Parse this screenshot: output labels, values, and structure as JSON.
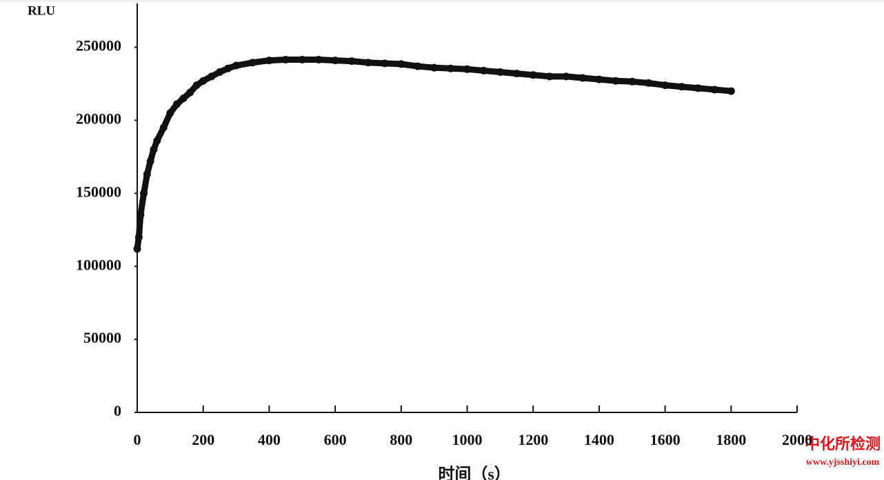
{
  "chart_data": {
    "type": "line",
    "y_label": "RLU",
    "x_label": "时间（s）",
    "x": [
      0,
      5,
      10,
      20,
      30,
      40,
      50,
      60,
      80,
      100,
      120,
      140,
      160,
      180,
      200,
      225,
      250,
      275,
      300,
      350,
      400,
      450,
      500,
      550,
      600,
      650,
      700,
      750,
      800,
      850,
      900,
      950,
      1000,
      1050,
      1100,
      1150,
      1200,
      1250,
      1300,
      1350,
      1400,
      1450,
      1500,
      1550,
      1600,
      1650,
      1700,
      1750,
      1800
    ],
    "values": [
      112000,
      120000,
      135000,
      150000,
      163000,
      172000,
      180000,
      186000,
      195000,
      205000,
      211000,
      215000,
      219000,
      224000,
      227000,
      230000,
      233000,
      235500,
      237500,
      239500,
      241000,
      241500,
      241500,
      241500,
      241000,
      240500,
      239500,
      239000,
      238500,
      237000,
      236000,
      235500,
      235000,
      234000,
      233000,
      232000,
      231000,
      230000,
      230000,
      229000,
      228000,
      227000,
      226500,
      225500,
      224000,
      223000,
      222000,
      221000,
      220000
    ],
    "color": "#111111",
    "xlim": [
      0,
      2000
    ],
    "xticks": [
      0,
      200,
      400,
      600,
      800,
      1000,
      1200,
      1400,
      1600,
      1800,
      2000
    ],
    "ylim": [
      0,
      280000
    ],
    "yticks": [
      0,
      50000,
      100000,
      150000,
      200000,
      250000
    ]
  },
  "watermark": {
    "name": "中化所检测",
    "url": "www.yjsshiyi.com"
  }
}
